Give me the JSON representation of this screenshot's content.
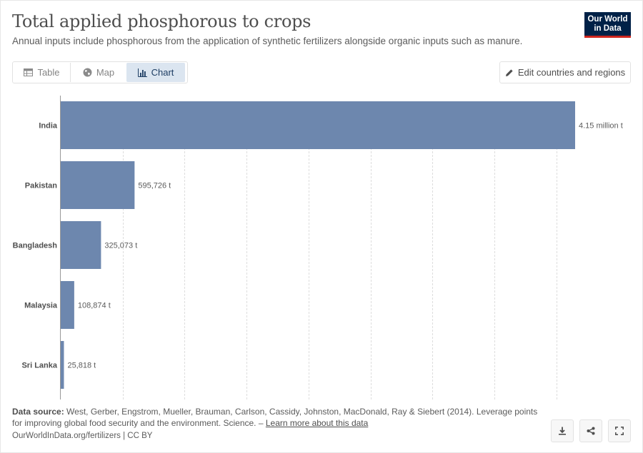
{
  "header": {
    "title": "Total applied phosphorous to crops",
    "subtitle": "Annual inputs include phosphorous from the application of synthetic fertilizers alongside organic inputs such as manure.",
    "logo_line1": "Our World",
    "logo_line2": "in Data"
  },
  "tabs": [
    {
      "label": "Table",
      "icon": "table-icon"
    },
    {
      "label": "Map",
      "icon": "globe-icon"
    },
    {
      "label": "Chart",
      "icon": "bar-chart-icon",
      "active": true
    }
  ],
  "edit_button": {
    "label": "Edit countries and regions",
    "icon": "pencil-icon"
  },
  "chart_data": {
    "type": "bar",
    "orientation": "horizontal",
    "categories": [
      "India",
      "Pakistan",
      "Bangladesh",
      "Malaysia",
      "Sri Lanka"
    ],
    "values": [
      4150000,
      595726,
      325073,
      108874,
      25818
    ],
    "value_labels": [
      "4.15 million t",
      "595,726 t",
      "325,073 t",
      "108,874 t",
      "25,818 t"
    ],
    "xlim": [
      0,
      4150000
    ],
    "grid": true,
    "bar_color": "#6d87ae"
  },
  "footer": {
    "source_label": "Data source:",
    "source_text": "West, Gerber, Engstrom, Mueller, Brauman, Carlson, Cassidy, Johnston, MacDonald, Ray & Siebert (2014). Leverage points for improving global food security and the environment. Science. –",
    "learn_more": "Learn more about this data",
    "url": "OurWorldInData.org/fertilizers | CC BY"
  },
  "actions": [
    {
      "icon": "download-icon"
    },
    {
      "icon": "share-icon"
    },
    {
      "icon": "fullscreen-icon"
    }
  ]
}
